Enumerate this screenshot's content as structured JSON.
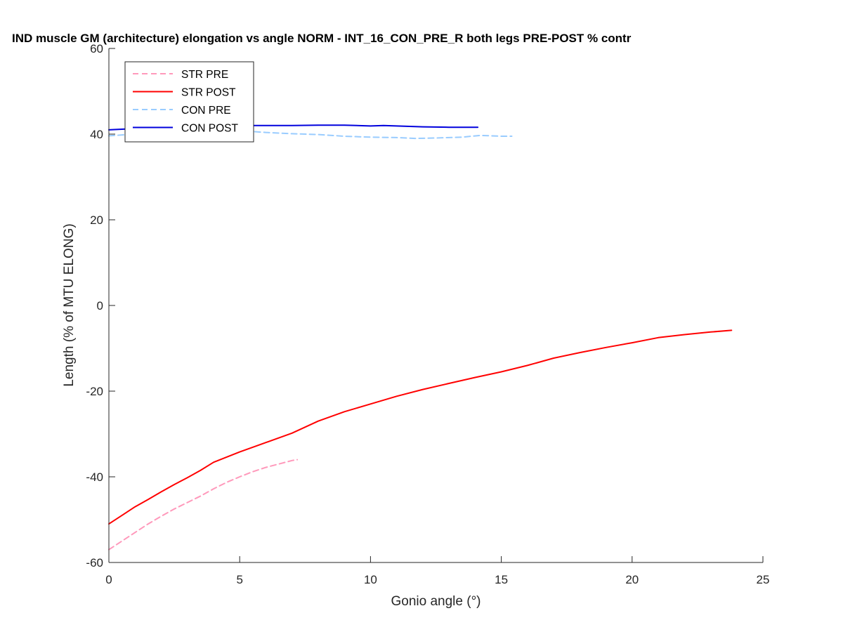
{
  "chart_data": {
    "type": "line",
    "title": "IND muscle GM (architecture) elongation vs angle NORM - INT_16_CON_PRE_R both legs PRE-POST % contr",
    "xlabel": "Gonio angle (°)",
    "ylabel": "Length (% of MTU ELONG)",
    "xlim": [
      0,
      25
    ],
    "ylim": [
      -60,
      60
    ],
    "xticks": [
      0,
      5,
      10,
      15,
      20,
      25
    ],
    "xtick_labels": [
      "0",
      "5",
      "10",
      "15",
      "20",
      "25"
    ],
    "yticks": [
      -60,
      -40,
      -20,
      0,
      20,
      40,
      60
    ],
    "ytick_labels": [
      "-60",
      "-40",
      "-20",
      "0",
      "20",
      "40",
      "60"
    ],
    "grid": false,
    "legend_position": "top-left",
    "series": [
      {
        "name": "STR PRE",
        "color": "#ff99bb",
        "style": "dashed",
        "x": [
          0,
          0.5,
          1,
          1.5,
          2,
          2.5,
          3,
          3.5,
          4,
          4.5,
          5,
          5.5,
          6,
          6.5,
          7,
          7.2
        ],
        "y": [
          -57,
          -55,
          -53,
          -51,
          -49.2,
          -47.5,
          -46,
          -44.5,
          -42.8,
          -41.3,
          -40,
          -38.8,
          -37.8,
          -37,
          -36.2,
          -36
        ]
      },
      {
        "name": "STR POST",
        "color": "#ff0000",
        "style": "solid",
        "x": [
          0,
          0.5,
          1,
          1.5,
          2,
          2.5,
          3,
          3.5,
          4,
          5,
          6,
          7,
          8,
          9,
          10,
          11,
          12,
          13,
          14,
          15,
          16,
          17,
          18,
          19,
          20,
          21,
          22,
          23,
          23.8
        ],
        "y": [
          -51,
          -49,
          -47,
          -45.3,
          -43.5,
          -41.8,
          -40.2,
          -38.5,
          -36.6,
          -34.2,
          -32,
          -29.8,
          -27,
          -24.8,
          -23,
          -21.2,
          -19.6,
          -18.2,
          -16.8,
          -15.5,
          -14,
          -12.3,
          -11,
          -9.8,
          -8.7,
          -7.5,
          -6.8,
          -6.2,
          -5.8
        ]
      },
      {
        "name": "CON PRE",
        "color": "#99ccff",
        "style": "dashed",
        "x": [
          0,
          1,
          2,
          3,
          4,
          5,
          6,
          7,
          8,
          9,
          10,
          11,
          11.7,
          12.5,
          13.5,
          14.2,
          15,
          15.4
        ],
        "y": [
          39.6,
          40,
          40.6,
          40.8,
          40.8,
          40.8,
          40.4,
          40.1,
          39.9,
          39.5,
          39.3,
          39.2,
          39,
          39.1,
          39.3,
          39.7,
          39.5,
          39.5
        ]
      },
      {
        "name": "CON POST",
        "color": "#0000dd",
        "style": "solid",
        "x": [
          0,
          1,
          2,
          3,
          4,
          5,
          6,
          7,
          8,
          9,
          10,
          10.5,
          11,
          12,
          13,
          14.1
        ],
        "y": [
          41,
          41.3,
          41.6,
          41.8,
          41.9,
          42,
          42,
          42,
          42.1,
          42.1,
          41.9,
          42,
          41.9,
          41.7,
          41.6,
          41.6
        ]
      }
    ]
  }
}
